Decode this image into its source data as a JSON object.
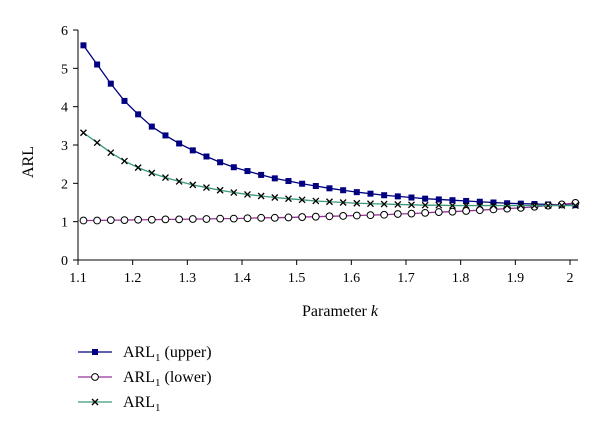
{
  "chart_data": {
    "type": "line",
    "xlabel": "Parameter",
    "xlabel_var": "k",
    "ylabel": "ARL",
    "xlim": [
      1.1,
      2.0
    ],
    "ylim": [
      0,
      6
    ],
    "xticks": [
      "1.1",
      "1.2",
      "1.3",
      "1.4",
      "1.5",
      "1.6",
      "1.7",
      "1.8",
      "1.9",
      "2"
    ],
    "yticks": [
      "0",
      "1",
      "2",
      "3",
      "4",
      "5",
      "6"
    ],
    "grid": false,
    "legend_position": "bottom-left",
    "series": [
      {
        "name": "ARL",
        "name_sub": "1",
        "name_suffix": " (upper)",
        "color": "#000080",
        "marker": "square",
        "x": [
          1.11,
          1.135,
          1.16,
          1.185,
          1.21,
          1.235,
          1.26,
          1.285,
          1.31,
          1.335,
          1.36,
          1.385,
          1.41,
          1.435,
          1.46,
          1.485,
          1.51,
          1.535,
          1.56,
          1.585,
          1.61,
          1.635,
          1.66,
          1.685,
          1.71,
          1.735,
          1.76,
          1.785,
          1.81,
          1.835,
          1.86,
          1.885,
          1.91,
          1.935,
          1.96,
          1.985,
          2.01
        ],
        "values": [
          5.6,
          5.1,
          4.6,
          4.15,
          3.8,
          3.48,
          3.25,
          3.04,
          2.86,
          2.7,
          2.55,
          2.42,
          2.32,
          2.22,
          2.13,
          2.06,
          1.99,
          1.93,
          1.87,
          1.82,
          1.77,
          1.73,
          1.69,
          1.66,
          1.63,
          1.6,
          1.58,
          1.56,
          1.54,
          1.52,
          1.5,
          1.48,
          1.47,
          1.46,
          1.45,
          1.44,
          1.43
        ]
      },
      {
        "name": "ARL",
        "name_sub": "1",
        "name_suffix": " (lower)",
        "color": "#993399",
        "marker": "circle",
        "x": [
          1.11,
          1.135,
          1.16,
          1.185,
          1.21,
          1.235,
          1.26,
          1.285,
          1.31,
          1.335,
          1.36,
          1.385,
          1.41,
          1.435,
          1.46,
          1.485,
          1.51,
          1.535,
          1.56,
          1.585,
          1.61,
          1.635,
          1.66,
          1.685,
          1.71,
          1.735,
          1.76,
          1.785,
          1.81,
          1.835,
          1.86,
          1.885,
          1.91,
          1.935,
          1.96,
          1.985,
          2.01
        ],
        "values": [
          1.03,
          1.03,
          1.04,
          1.04,
          1.05,
          1.05,
          1.06,
          1.06,
          1.07,
          1.07,
          1.08,
          1.08,
          1.09,
          1.1,
          1.1,
          1.11,
          1.12,
          1.13,
          1.14,
          1.15,
          1.16,
          1.17,
          1.18,
          1.2,
          1.21,
          1.23,
          1.25,
          1.26,
          1.28,
          1.3,
          1.32,
          1.34,
          1.36,
          1.39,
          1.42,
          1.45,
          1.49
        ]
      },
      {
        "name": "ARL",
        "name_sub": "1",
        "name_suffix": "",
        "color": "#3a9a7a",
        "marker": "x",
        "x": [
          1.11,
          1.135,
          1.16,
          1.185,
          1.21,
          1.235,
          1.26,
          1.285,
          1.31,
          1.335,
          1.36,
          1.385,
          1.41,
          1.435,
          1.46,
          1.485,
          1.51,
          1.535,
          1.56,
          1.585,
          1.61,
          1.635,
          1.66,
          1.685,
          1.71,
          1.735,
          1.76,
          1.785,
          1.81,
          1.835,
          1.86,
          1.885,
          1.91,
          1.935,
          1.96,
          1.985,
          2.01
        ],
        "values": [
          3.32,
          3.06,
          2.8,
          2.58,
          2.41,
          2.27,
          2.15,
          2.05,
          1.96,
          1.89,
          1.82,
          1.76,
          1.71,
          1.67,
          1.63,
          1.6,
          1.57,
          1.54,
          1.52,
          1.5,
          1.48,
          1.47,
          1.46,
          1.45,
          1.44,
          1.43,
          1.43,
          1.42,
          1.42,
          1.42,
          1.42,
          1.42,
          1.42,
          1.42,
          1.42,
          1.42,
          1.42
        ]
      }
    ]
  }
}
